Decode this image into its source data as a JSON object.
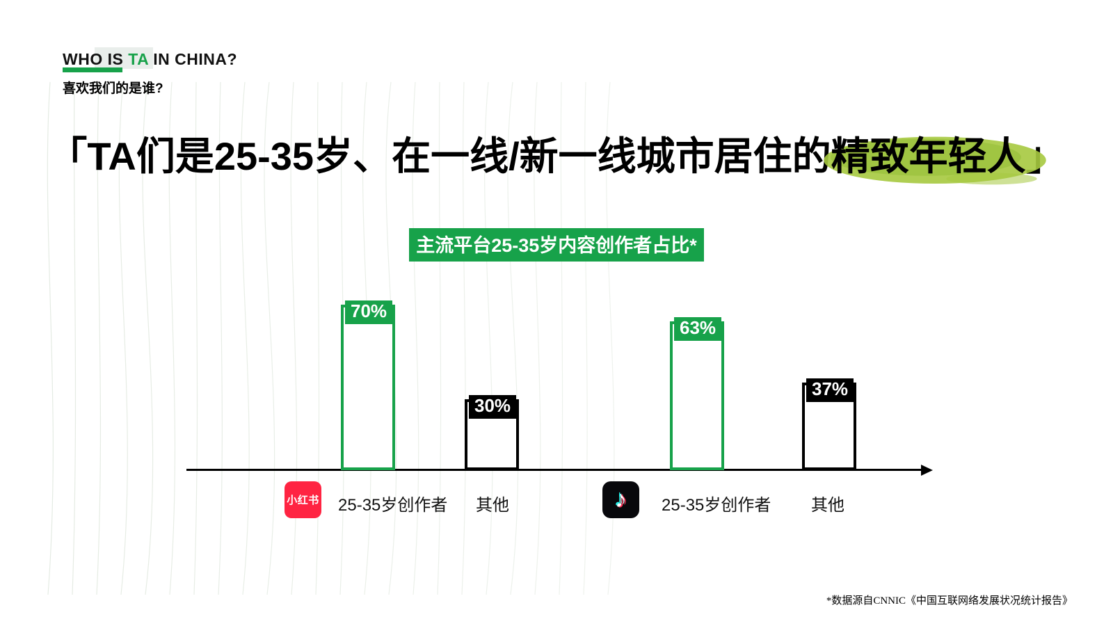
{
  "header": {
    "title_pre": "WHO IS ",
    "title_ta": "TA",
    "title_post": " IN CHINA?",
    "subtitle": "喜欢我们的是谁?"
  },
  "headline": {
    "before": "「TA们是25-35岁、在一线/新一线城市居住的",
    "highlight": "精致年轻人",
    "after": "」"
  },
  "chart": {
    "title": "主流平台25-35岁内容创作者占比*",
    "platforms": [
      {
        "name": "小红书"
      },
      {
        "name": "抖音"
      }
    ],
    "bars": [
      {
        "label": "25-35岁创作者",
        "value": "70%",
        "pct": 70,
        "style": "green"
      },
      {
        "label": "其他",
        "value": "30%",
        "pct": 30,
        "style": "black"
      },
      {
        "label": "25-35岁创作者",
        "value": "63%",
        "pct": 63,
        "style": "green"
      },
      {
        "label": "其他",
        "value": "37%",
        "pct": 37,
        "style": "black"
      }
    ]
  },
  "chart_data": {
    "type": "bar",
    "title": "主流平台25-35岁内容创作者占比*",
    "categories": [
      "25-35岁创作者",
      "其他"
    ],
    "series": [
      {
        "name": "小红书",
        "values": [
          70,
          30
        ]
      },
      {
        "name": "抖音",
        "values": [
          63,
          37
        ]
      }
    ],
    "unit": "%",
    "ylim": [
      0,
      100
    ],
    "grid": false,
    "legend": "none",
    "bar_style": "outlined",
    "colors": {
      "highlight_bar": "#17A24A",
      "other_bar": "#000000"
    }
  },
  "footer": {
    "source": "*数据源自CNNIC《中国互联网络发展状况统计报告》"
  },
  "colors": {
    "accent_green": "#17A24A",
    "brush_green": "#A6C93F",
    "xiaohongshu_red": "#FF2442",
    "douyin_black": "#08080C"
  }
}
